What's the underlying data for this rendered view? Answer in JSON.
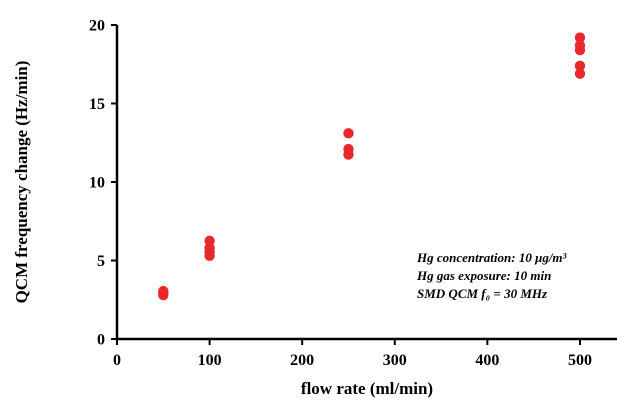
{
  "chart_data": {
    "type": "scatter",
    "xlabel": "flow rate (ml/min)",
    "ylabel": "QCM frequency change (Hz/min)",
    "xlim": [
      0,
      540
    ],
    "ylim": [
      0,
      20
    ],
    "xticks": [
      0,
      100,
      200,
      300,
      400,
      500
    ],
    "yticks": [
      0,
      5,
      10,
      15,
      20
    ],
    "grid": false,
    "marker_color": "#e8282b",
    "series": [
      {
        "points": [
          {
            "x": 50,
            "y": 2.8
          },
          {
            "x": 50,
            "y": 2.95
          },
          {
            "x": 50,
            "y": 3.05
          },
          {
            "x": 100,
            "y": 5.3
          },
          {
            "x": 100,
            "y": 5.55
          },
          {
            "x": 100,
            "y": 5.8
          },
          {
            "x": 100,
            "y": 6.25
          },
          {
            "x": 250,
            "y": 11.75
          },
          {
            "x": 250,
            "y": 12.1
          },
          {
            "x": 250,
            "y": 13.1
          },
          {
            "x": 500,
            "y": 16.9
          },
          {
            "x": 500,
            "y": 17.4
          },
          {
            "x": 500,
            "y": 18.4
          },
          {
            "x": 500,
            "y": 18.7
          },
          {
            "x": 500,
            "y": 19.2
          }
        ]
      }
    ],
    "annotations": [
      "Hg concentration: 10 μg/m³",
      "Hg gas exposure: 10 min",
      "SMD QCM f₀ = 30 MHz"
    ]
  }
}
